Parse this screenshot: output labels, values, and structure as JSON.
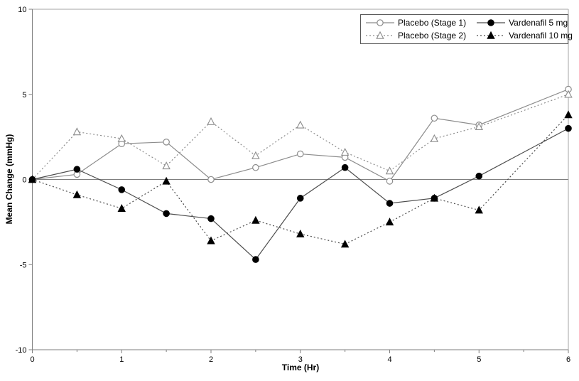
{
  "chart_data": {
    "type": "line",
    "title": "",
    "xlabel": "Time (Hr)",
    "ylabel": "Mean Change (mmHg)",
    "xlim": [
      0,
      6
    ],
    "ylim": [
      -10,
      10
    ],
    "x_ticks": [
      0,
      1,
      2,
      3,
      4,
      5,
      6
    ],
    "y_ticks": [
      10,
      5,
      0,
      -5,
      -10
    ],
    "grid": false,
    "zero_line": true,
    "legend_position": "top-right",
    "x": [
      0,
      0.5,
      1,
      1.5,
      2,
      2.5,
      3,
      3.5,
      4,
      4.5,
      5,
      6
    ],
    "series": [
      {
        "name": "Placebo (Stage 1)",
        "marker": "circle",
        "fill": "open",
        "line": "solid",
        "color": "#8c8c8c",
        "values": [
          0,
          0.3,
          2.1,
          2.2,
          0.0,
          0.7,
          1.5,
          1.3,
          -0.1,
          3.6,
          3.2,
          5.3
        ]
      },
      {
        "name": "Placebo (Stage 2)",
        "marker": "triangle",
        "fill": "open",
        "line": "dotted",
        "color": "#8c8c8c",
        "values": [
          0,
          2.8,
          2.4,
          0.8,
          3.4,
          1.4,
          3.2,
          1.6,
          0.5,
          2.4,
          3.1,
          5.0
        ]
      },
      {
        "name": "Vardenafil 5 mg",
        "marker": "circle",
        "fill": "solid",
        "line": "solid",
        "color": "#4d4d4d",
        "values": [
          0,
          0.6,
          -0.6,
          -2.0,
          -2.3,
          -4.7,
          -1.1,
          0.7,
          -1.4,
          -1.1,
          0.2,
          3.0
        ]
      },
      {
        "name": "Vardenafil 10 mg",
        "marker": "triangle",
        "fill": "solid",
        "line": "dotted",
        "color": "#4d4d4d",
        "values": [
          0,
          -0.9,
          -1.7,
          -0.1,
          -3.6,
          -2.4,
          -3.2,
          -3.8,
          -2.5,
          -1.1,
          -1.8,
          3.8
        ]
      }
    ],
    "colors": {
      "axis": "#7f7f7f",
      "frame": "#a6a6a6",
      "marker_fill": "#000000",
      "text": "#000000"
    }
  }
}
